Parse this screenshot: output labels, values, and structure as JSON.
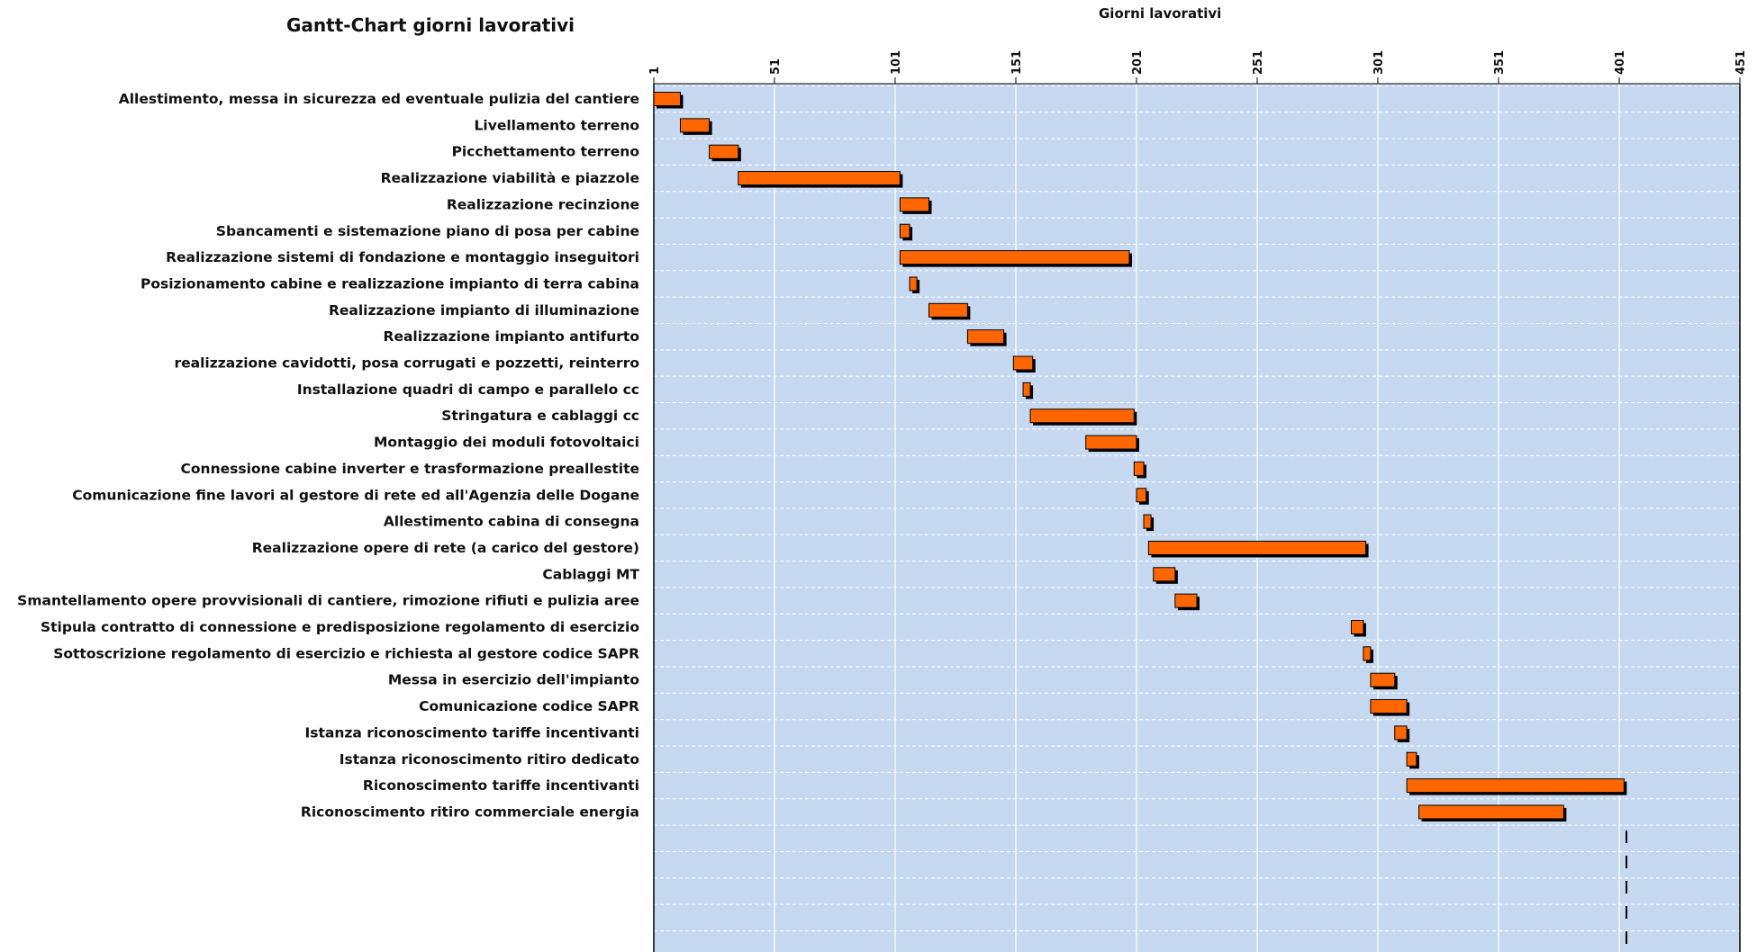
{
  "chart_data": {
    "type": "gantt",
    "title": "Gantt-Chart giorni lavorativi",
    "xlabel": "Giorni lavorativi",
    "xlim": [
      1,
      451
    ],
    "x_ticks": [
      "1",
      "51",
      "101",
      "151",
      "201",
      "251",
      "301",
      "351",
      "401",
      "451"
    ],
    "grid": true,
    "colors": {
      "plot_bg": "#c6d9f1",
      "bar": "#ff6600",
      "bar_shadow": "#000000",
      "grid": "#ffffff"
    },
    "tasks": [
      {
        "label": "Allestimento, messa in sicurezza ed eventuale pulizia del cantiere",
        "start": 1,
        "end": 12
      },
      {
        "label": "Livellamento terreno",
        "start": 12,
        "end": 24
      },
      {
        "label": "Picchettamento terreno",
        "start": 24,
        "end": 36
      },
      {
        "label": "Realizzazione viabilità e piazzole",
        "start": 36,
        "end": 103
      },
      {
        "label": "Realizzazione recinzione",
        "start": 103,
        "end": 115
      },
      {
        "label": "Sbancamenti e sistemazione piano di posa per cabine",
        "start": 103,
        "end": 107
      },
      {
        "label": "Realizzazione sistemi di fondazione e montaggio inseguitori",
        "start": 103,
        "end": 198
      },
      {
        "label": "Posizionamento cabine e realizzazione impianto di terra cabina",
        "start": 107,
        "end": 110
      },
      {
        "label": "Realizzazione impianto di illuminazione",
        "start": 115,
        "end": 131
      },
      {
        "label": "Realizzazione impianto antifurto",
        "start": 131,
        "end": 146
      },
      {
        "label": "realizzazione cavidotti, posa corrugati e pozzetti, reinterro",
        "start": 150,
        "end": 158
      },
      {
        "label": "Installazione quadri di campo e parallelo cc",
        "start": 154,
        "end": 157
      },
      {
        "label": "Stringatura e cablaggi cc",
        "start": 157,
        "end": 200
      },
      {
        "label": "Montaggio dei moduli fotovoltaici",
        "start": 180,
        "end": 201
      },
      {
        "label": "Connessione cabine inverter e trasformazione preallestite",
        "start": 200,
        "end": 204
      },
      {
        "label": "Comunicazione fine lavori al gestore di rete ed all'Agenzia delle Dogane",
        "start": 201,
        "end": 205
      },
      {
        "label": "Allestimento cabina di consegna",
        "start": 204,
        "end": 207
      },
      {
        "label": "Realizzazione opere di rete (a carico del gestore)",
        "start": 206,
        "end": 296
      },
      {
        "label": "Cablaggi MT",
        "start": 208,
        "end": 217
      },
      {
        "label": "Smantellamento opere provvisionali di cantiere, rimozione rifiuti e pulizia aree",
        "start": 217,
        "end": 226
      },
      {
        "label": "Stipula contratto di connessione e predisposizione regolamento di esercizio",
        "start": 290,
        "end": 295
      },
      {
        "label": "Sottoscrizione regolamento di esercizio e richiesta al gestore codice SAPR",
        "start": 295,
        "end": 298
      },
      {
        "label": "Messa in esercizio dell'impianto",
        "start": 298,
        "end": 308
      },
      {
        "label": "Comunicazione codice SAPR",
        "start": 298,
        "end": 313
      },
      {
        "label": "Istanza riconoscimento tariffe incentivanti",
        "start": 308,
        "end": 313
      },
      {
        "label": "Istanza riconoscimento ritiro dedicato",
        "start": 313,
        "end": 317
      },
      {
        "label": "Riconoscimento tariffe incentivanti",
        "start": 313,
        "end": 403
      },
      {
        "label": "Riconoscimento ritiro commerciale energia",
        "start": 318,
        "end": 378
      }
    ],
    "empty_rows": 5,
    "marker_line": {
      "x": 404,
      "style": "dashed"
    }
  }
}
